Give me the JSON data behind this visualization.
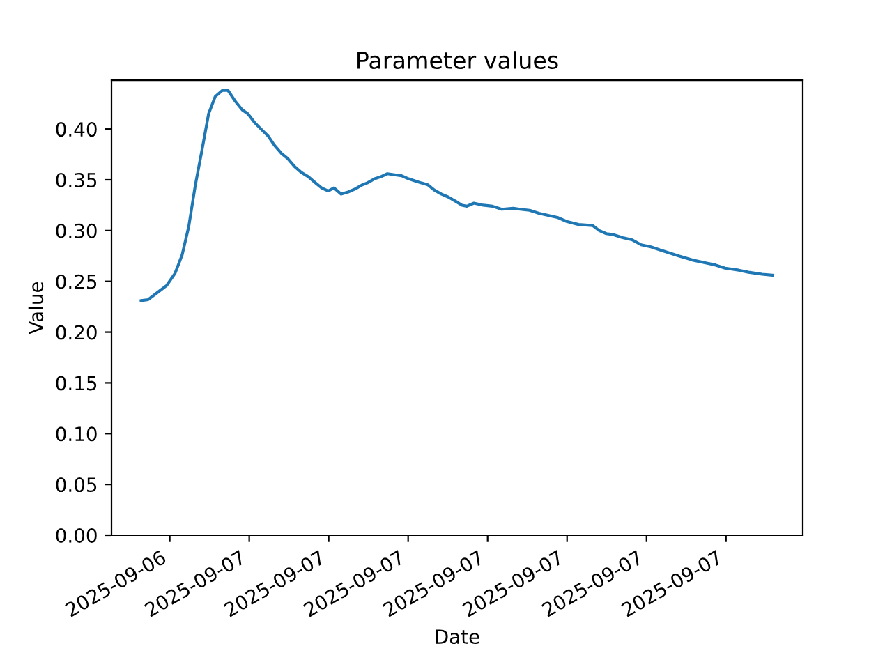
{
  "chart_data": {
    "type": "line",
    "title": "Parameter values",
    "xlabel": "Date",
    "ylabel": "Value",
    "x": [
      "2025-09-06T19:55",
      "2025-09-06T20:11",
      "2025-09-06T20:32",
      "2025-09-06T20:53",
      "2025-09-06T21:12",
      "2025-09-06T21:28",
      "2025-09-06T21:43",
      "2025-09-06T21:58",
      "2025-09-06T22:12",
      "2025-09-06T22:28",
      "2025-09-06T22:43",
      "2025-09-06T22:59",
      "2025-09-06T23:12",
      "2025-09-06T23:29",
      "2025-09-06T23:44",
      "2025-09-06T23:57",
      "2025-09-07T00:13",
      "2025-09-07T00:29",
      "2025-09-07T00:43",
      "2025-09-07T00:57",
      "2025-09-07T01:13",
      "2025-09-07T01:27",
      "2025-09-07T01:43",
      "2025-09-07T01:59",
      "2025-09-07T02:14",
      "2025-09-07T02:30",
      "2025-09-07T02:44",
      "2025-09-07T02:59",
      "2025-09-07T03:12",
      "2025-09-07T03:28",
      "2025-09-07T03:44",
      "2025-09-07T04:00",
      "2025-09-07T04:16",
      "2025-09-07T04:28",
      "2025-09-07T04:44",
      "2025-09-07T04:58",
      "2025-09-07T05:13",
      "2025-09-07T05:29",
      "2025-09-07T05:45",
      "2025-09-07T06:01",
      "2025-09-07T06:15",
      "2025-09-07T06:29",
      "2025-09-07T06:45",
      "2025-09-07T06:59",
      "2025-09-07T07:15",
      "2025-09-07T07:31",
      "2025-09-07T07:47",
      "2025-09-07T08:02",
      "2025-09-07T08:13",
      "2025-09-07T08:29",
      "2025-09-07T08:50",
      "2025-09-07T09:11",
      "2025-09-07T09:32",
      "2025-09-07T09:58",
      "2025-09-07T10:14",
      "2025-09-07T10:35",
      "2025-09-07T10:56",
      "2025-09-07T11:17",
      "2025-09-07T11:38",
      "2025-09-07T11:59",
      "2025-09-07T12:26",
      "2025-09-07T12:58",
      "2025-09-07T13:13",
      "2025-09-07T13:29",
      "2025-09-07T13:45",
      "2025-09-07T14:06",
      "2025-09-07T14:27",
      "2025-09-07T14:48",
      "2025-09-07T15:10",
      "2025-09-07T15:30",
      "2025-09-07T15:52",
      "2025-09-07T16:13",
      "2025-09-07T16:44",
      "2025-09-07T17:16",
      "2025-09-07T17:37",
      "2025-09-07T17:58",
      "2025-09-07T18:29",
      "2025-09-07T18:51",
      "2025-09-07T19:22",
      "2025-09-07T19:46"
    ],
    "series": [
      {
        "color": "#1f77b4",
        "values": [
          0.231,
          0.232,
          0.239,
          0.246,
          0.258,
          0.276,
          0.304,
          0.345,
          0.377,
          0.415,
          0.432,
          0.438,
          0.438,
          0.427,
          0.419,
          0.415,
          0.406,
          0.399,
          0.393,
          0.384,
          0.376,
          0.371,
          0.363,
          0.357,
          0.353,
          0.347,
          0.342,
          0.339,
          0.342,
          0.336,
          0.338,
          0.341,
          0.345,
          0.347,
          0.351,
          0.353,
          0.356,
          0.355,
          0.354,
          0.351,
          0.349,
          0.347,
          0.345,
          0.34,
          0.336,
          0.333,
          0.329,
          0.325,
          0.324,
          0.327,
          0.325,
          0.324,
          0.321,
          0.322,
          0.321,
          0.32,
          0.317,
          0.315,
          0.313,
          0.309,
          0.306,
          0.305,
          0.3,
          0.297,
          0.296,
          0.293,
          0.291,
          0.286,
          0.284,
          0.281,
          0.278,
          0.275,
          0.271,
          0.268,
          0.266,
          0.263,
          0.261,
          0.259,
          0.257,
          0.256
        ]
      }
    ],
    "xlim": [
      "2025-09-06T18:48",
      "2025-09-07T20:54"
    ],
    "xticks": [
      {
        "value": "2025-09-06T21:00",
        "label": "2025-09-06"
      },
      {
        "value": "2025-09-07T00:00",
        "label": "2025-09-07"
      },
      {
        "value": "2025-09-07T03:00",
        "label": "2025-09-07"
      },
      {
        "value": "2025-09-07T06:00",
        "label": "2025-09-07"
      },
      {
        "value": "2025-09-07T09:00",
        "label": "2025-09-07"
      },
      {
        "value": "2025-09-07T12:00",
        "label": "2025-09-07"
      },
      {
        "value": "2025-09-07T15:00",
        "label": "2025-09-07"
      },
      {
        "value": "2025-09-07T18:00",
        "label": "2025-09-07"
      }
    ],
    "ylim": [
      0,
      0.448
    ],
    "yticks": [
      {
        "value": 0,
        "label": "0.00"
      },
      {
        "value": 0.05,
        "label": "0.05"
      },
      {
        "value": 0.1,
        "label": "0.10"
      },
      {
        "value": 0.15,
        "label": "0.15"
      },
      {
        "value": 0.2,
        "label": "0.20"
      },
      {
        "value": 0.25,
        "label": "0.25"
      },
      {
        "value": 0.3,
        "label": "0.30"
      },
      {
        "value": 0.35,
        "label": "0.35"
      },
      {
        "value": 0.4,
        "label": "0.40"
      }
    ],
    "grid": false,
    "legend": false,
    "marker": "none",
    "line_style": "solid"
  }
}
